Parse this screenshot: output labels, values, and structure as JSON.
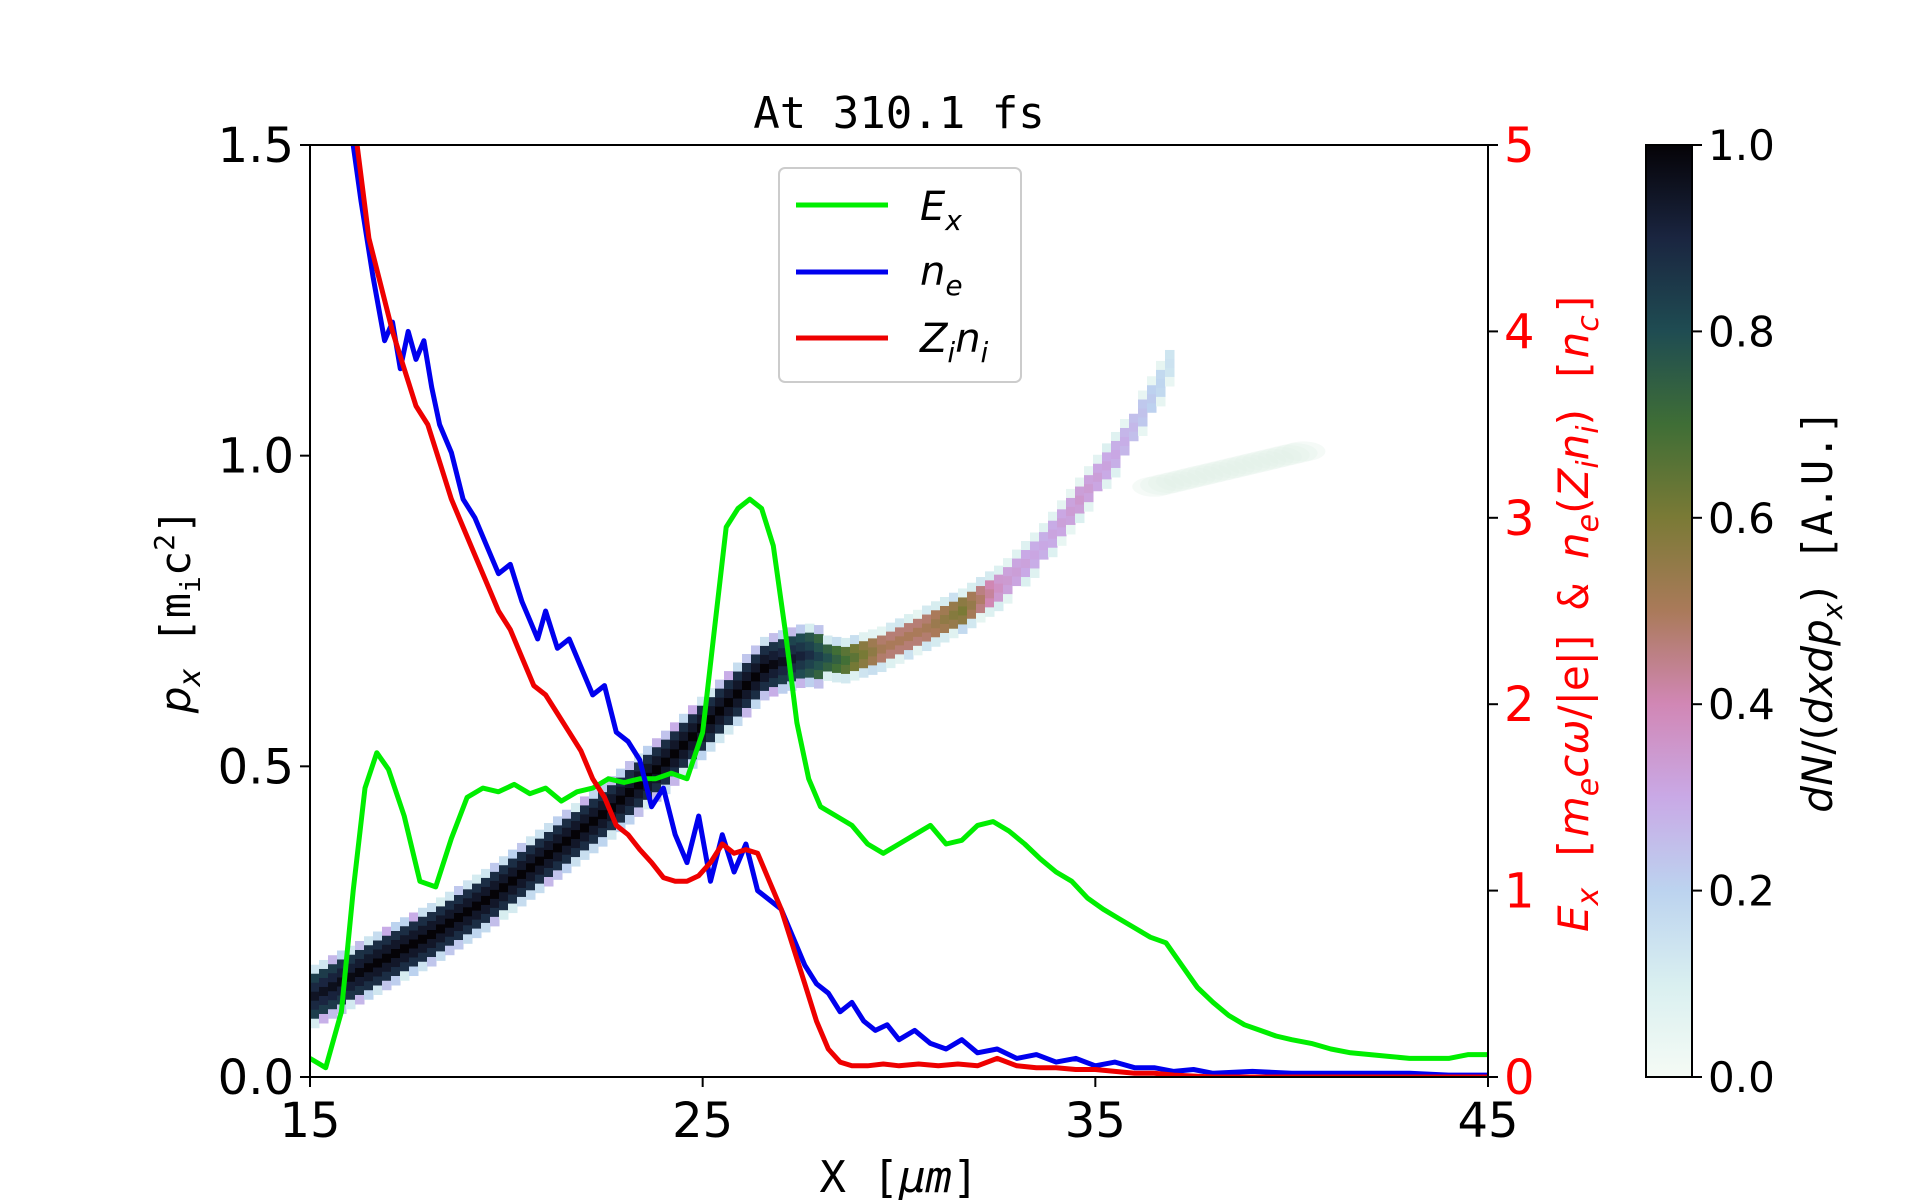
{
  "chart_data": {
    "type": "heatmap",
    "title": "At 310.1 fs",
    "xlabel": "X [μm]",
    "ylabel_left": "p_x [m_i c^2]",
    "ylabel_right": "E_x [m_e cω/|e|] & n_e(Z_i n_i) [n_c]",
    "colorbar_label": "dN/(dxdp_x) [A.U.]",
    "xlim": [
      15,
      45
    ],
    "ylim_left": [
      0,
      1.5
    ],
    "ylim_right": [
      0,
      5
    ],
    "colorbar_lim": [
      0,
      1
    ],
    "x_ticks": [
      "15",
      "25",
      "35",
      "45"
    ],
    "y_left_ticks": [
      "0.0",
      "0.5",
      "1.0",
      "1.5"
    ],
    "y_right_ticks": [
      "0",
      "1",
      "2",
      "3",
      "4",
      "5"
    ],
    "colorbar_ticks": [
      "0.0",
      "0.2",
      "0.4",
      "0.6",
      "0.8",
      "1.0"
    ],
    "legend_position": "top-center",
    "legend": [
      "E_x",
      "n_e",
      "Z_i n_i"
    ],
    "series": [
      {
        "name": "E_x",
        "color": "#00ee00",
        "axis": "right",
        "x": [
          15,
          15.4,
          15.8,
          16.1,
          16.4,
          16.7,
          17.0,
          17.4,
          17.8,
          18.2,
          18.6,
          19.0,
          19.4,
          19.8,
          20.2,
          20.6,
          21.0,
          21.4,
          21.8,
          22.2,
          22.6,
          23.0,
          23.4,
          23.8,
          24.2,
          24.6,
          25.0,
          25.3,
          25.6,
          25.9,
          26.2,
          26.5,
          26.8,
          27.1,
          27.4,
          27.7,
          28.0,
          28.4,
          28.8,
          29.2,
          29.6,
          30.0,
          30.4,
          30.8,
          31.2,
          31.6,
          32.0,
          32.4,
          32.8,
          33.2,
          33.6,
          34.0,
          34.4,
          34.8,
          35.2,
          35.6,
          36.0,
          36.4,
          36.8,
          37.2,
          37.6,
          38.0,
          38.4,
          38.8,
          39.2,
          39.6,
          40.0,
          40.5,
          41.0,
          41.5,
          42.0,
          42.5,
          43.0,
          43.5,
          44.0,
          44.5,
          45.0
        ],
        "values": [
          0.1,
          0.05,
          0.35,
          1.0,
          1.55,
          1.74,
          1.65,
          1.4,
          1.05,
          1.02,
          1.28,
          1.5,
          1.55,
          1.53,
          1.57,
          1.52,
          1.55,
          1.48,
          1.53,
          1.55,
          1.6,
          1.58,
          1.6,
          1.6,
          1.63,
          1.6,
          1.85,
          2.4,
          2.95,
          3.05,
          3.1,
          3.05,
          2.85,
          2.4,
          1.9,
          1.6,
          1.45,
          1.4,
          1.35,
          1.25,
          1.2,
          1.25,
          1.3,
          1.35,
          1.25,
          1.27,
          1.35,
          1.37,
          1.32,
          1.25,
          1.17,
          1.1,
          1.05,
          0.96,
          0.9,
          0.85,
          0.8,
          0.75,
          0.72,
          0.6,
          0.48,
          0.4,
          0.33,
          0.28,
          0.25,
          0.22,
          0.2,
          0.18,
          0.15,
          0.13,
          0.12,
          0.11,
          0.1,
          0.1,
          0.1,
          0.12,
          0.12
        ]
      },
      {
        "name": "n_e",
        "color": "#0000ee",
        "axis": "right",
        "x": [
          16.1,
          16.3,
          16.6,
          16.9,
          17.1,
          17.3,
          17.5,
          17.7,
          17.9,
          18.1,
          18.3,
          18.6,
          18.9,
          19.2,
          19.5,
          19.8,
          20.1,
          20.4,
          20.6,
          20.8,
          21.0,
          21.3,
          21.6,
          21.9,
          22.2,
          22.5,
          22.8,
          23.1,
          23.4,
          23.7,
          24.0,
          24.3,
          24.6,
          24.9,
          25.2,
          25.5,
          25.8,
          26.1,
          26.4,
          26.7,
          27.0,
          27.3,
          27.6,
          27.9,
          28.2,
          28.5,
          28.8,
          29.1,
          29.4,
          29.7,
          30.0,
          30.4,
          30.8,
          31.2,
          31.6,
          32.0,
          32.5,
          33.0,
          33.5,
          34.0,
          34.5,
          35.0,
          35.5,
          36.0,
          36.5,
          37.0,
          37.5,
          38.0,
          39.0,
          40.0,
          41.0,
          42.0,
          43.0,
          44.0,
          45.0
        ],
        "values": [
          5.0,
          4.7,
          4.3,
          3.95,
          4.05,
          3.8,
          4.0,
          3.85,
          3.95,
          3.7,
          3.5,
          3.35,
          3.1,
          3.0,
          2.85,
          2.7,
          2.75,
          2.55,
          2.45,
          2.35,
          2.5,
          2.3,
          2.35,
          2.2,
          2.05,
          2.1,
          1.85,
          1.8,
          1.7,
          1.45,
          1.55,
          1.3,
          1.15,
          1.4,
          1.05,
          1.3,
          1.1,
          1.25,
          1.0,
          0.95,
          0.9,
          0.75,
          0.6,
          0.5,
          0.45,
          0.35,
          0.4,
          0.3,
          0.25,
          0.28,
          0.2,
          0.25,
          0.18,
          0.15,
          0.2,
          0.13,
          0.15,
          0.1,
          0.12,
          0.08,
          0.1,
          0.06,
          0.08,
          0.05,
          0.05,
          0.03,
          0.04,
          0.02,
          0.03,
          0.02,
          0.02,
          0.02,
          0.02,
          0.01,
          0.01
        ],
        "color_mark": "blue"
      },
      {
        "name": "Z_i n_i",
        "color": "#ee0000",
        "axis": "right",
        "x": [
          16.2,
          16.5,
          16.8,
          17.1,
          17.4,
          17.7,
          18.0,
          18.3,
          18.6,
          18.9,
          19.2,
          19.5,
          19.8,
          20.1,
          20.4,
          20.7,
          21.0,
          21.3,
          21.6,
          21.9,
          22.2,
          22.5,
          22.8,
          23.1,
          23.4,
          23.7,
          24.0,
          24.3,
          24.6,
          24.9,
          25.2,
          25.5,
          25.8,
          26.1,
          26.4,
          26.7,
          27.0,
          27.3,
          27.6,
          27.9,
          28.2,
          28.5,
          28.8,
          29.2,
          29.6,
          30.0,
          30.5,
          31.0,
          31.5,
          32.0,
          32.5,
          33.0,
          33.5,
          34.0,
          34.5,
          35.0,
          35.5,
          36.0,
          36.5,
          37.0,
          38.0,
          40.0,
          42.0,
          45.0
        ],
        "values": [
          5.0,
          4.5,
          4.25,
          4.0,
          3.8,
          3.6,
          3.5,
          3.3,
          3.1,
          2.95,
          2.8,
          2.65,
          2.5,
          2.4,
          2.25,
          2.1,
          2.05,
          1.95,
          1.85,
          1.75,
          1.6,
          1.5,
          1.35,
          1.3,
          1.22,
          1.15,
          1.07,
          1.05,
          1.05,
          1.08,
          1.15,
          1.25,
          1.2,
          1.22,
          1.2,
          1.05,
          0.9,
          0.7,
          0.5,
          0.3,
          0.15,
          0.08,
          0.06,
          0.06,
          0.07,
          0.06,
          0.07,
          0.06,
          0.07,
          0.06,
          0.1,
          0.06,
          0.05,
          0.05,
          0.04,
          0.04,
          0.03,
          0.02,
          0.02,
          0.01,
          0.0,
          0.0,
          0.0,
          0.0
        ]
      }
    ],
    "heatmap": {
      "description_points": [
        {
          "x": 15.0,
          "px": 0.13,
          "density": 0.95
        },
        {
          "x": 16.5,
          "px": 0.18,
          "density": 1.0
        },
        {
          "x": 18.0,
          "px": 0.23,
          "density": 1.0
        },
        {
          "x": 19.5,
          "px": 0.29,
          "density": 1.0
        },
        {
          "x": 21.0,
          "px": 0.36,
          "density": 1.0
        },
        {
          "x": 22.5,
          "px": 0.43,
          "density": 1.0
        },
        {
          "x": 24.0,
          "px": 0.51,
          "density": 1.0
        },
        {
          "x": 25.5,
          "px": 0.6,
          "density": 1.0
        },
        {
          "x": 26.5,
          "px": 0.66,
          "density": 1.0
        },
        {
          "x": 27.5,
          "px": 0.68,
          "density": 0.9
        },
        {
          "x": 28.5,
          "px": 0.67,
          "density": 0.7
        },
        {
          "x": 29.5,
          "px": 0.69,
          "density": 0.5
        },
        {
          "x": 30.5,
          "px": 0.72,
          "density": 0.5
        },
        {
          "x": 31.5,
          "px": 0.75,
          "density": 0.6
        },
        {
          "x": 32.5,
          "px": 0.79,
          "density": 0.35
        },
        {
          "x": 33.5,
          "px": 0.85,
          "density": 0.3
        },
        {
          "x": 34.5,
          "px": 0.93,
          "density": 0.35
        },
        {
          "x": 35.5,
          "px": 1.01,
          "density": 0.3
        },
        {
          "x": 36.5,
          "px": 1.11,
          "density": 0.2
        },
        {
          "x": 37.0,
          "px": 1.18,
          "density": 0.1
        }
      ],
      "halo": {
        "x_range": [
          36.5,
          40.5
        ],
        "px": 0.95,
        "density": 0.04
      }
    }
  },
  "colors": {
    "axis_right": "#ff0000",
    "axis_left": "#000000"
  }
}
